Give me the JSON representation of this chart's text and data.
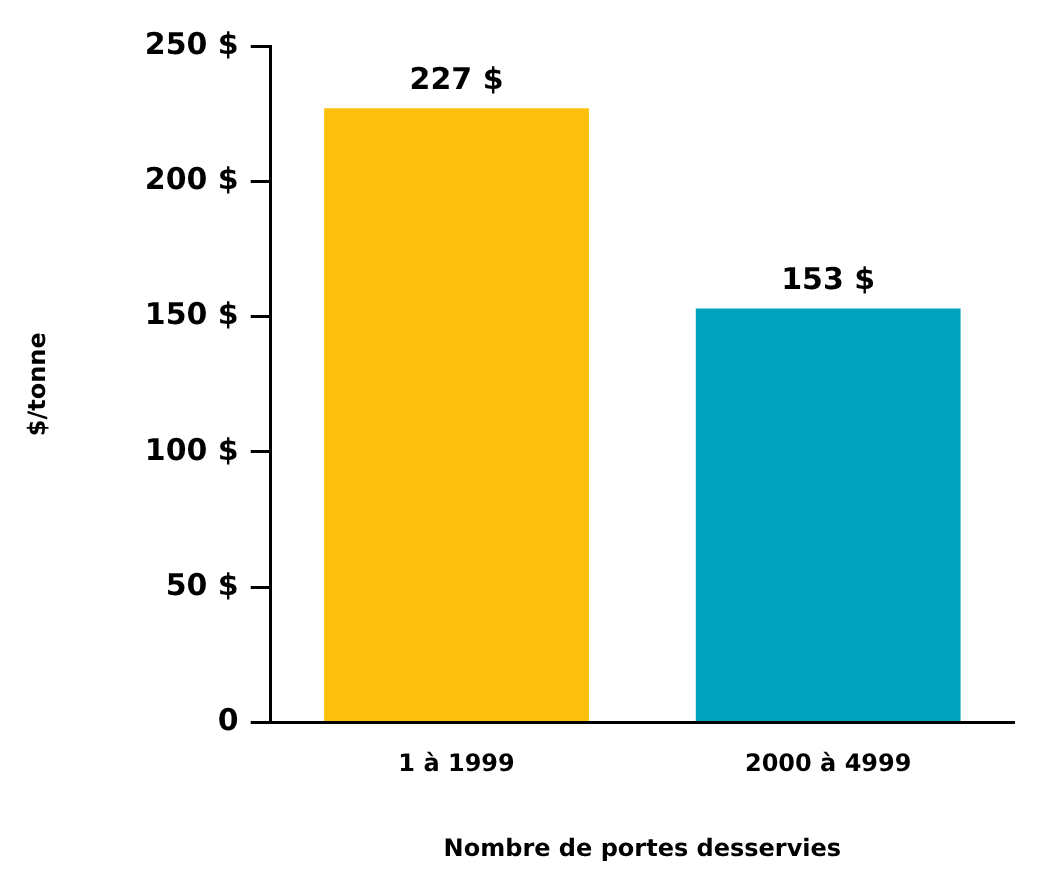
{
  "chart_data": {
    "type": "bar",
    "xlabel": "Nombre de portes desservies",
    "ylabel": "$/tonne",
    "categories": [
      "1 à 1999",
      "2000 à 4999"
    ],
    "values": [
      227,
      153
    ],
    "colors": [
      "#fcc00c",
      "#00a3bd"
    ],
    "value_labels": [
      "227 $",
      "153 $"
    ],
    "ylim": [
      0,
      250
    ],
    "yticks": [
      {
        "value": 0,
        "label": "0"
      },
      {
        "value": 50,
        "label": "50 $"
      },
      {
        "value": 100,
        "label": "100 $"
      },
      {
        "value": 150,
        "label": "150 $"
      },
      {
        "value": 200,
        "label": "200 $"
      },
      {
        "value": 250,
        "label": "250 $"
      }
    ],
    "grid": false,
    "legend": false
  }
}
